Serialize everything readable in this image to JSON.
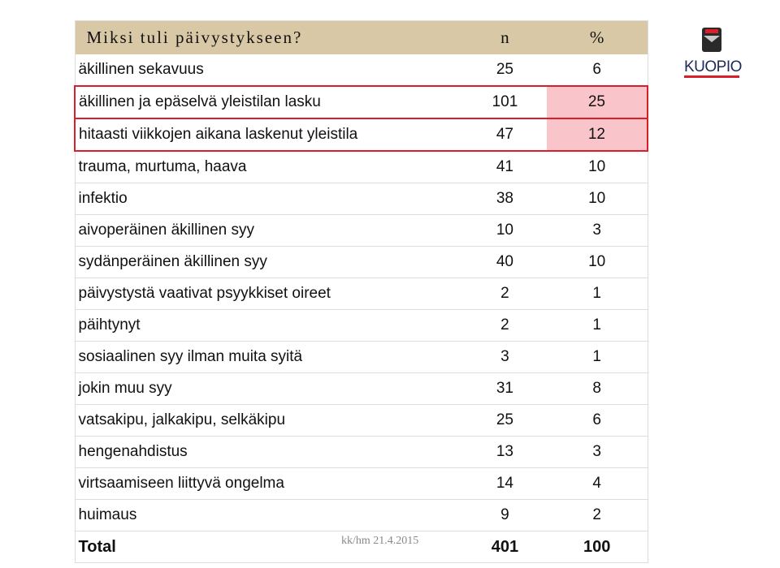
{
  "logo": {
    "text": "KUOPIO"
  },
  "table": {
    "header": [
      "Miksi tuli päivystykseen?",
      "n",
      "%"
    ],
    "rows": [
      [
        "äkillinen sekavuus",
        25,
        6
      ],
      [
        "äkillinen ja epäselvä yleistilan lasku",
        101,
        25
      ],
      [
        "hitaasti viikkojen aikana laskenut yleistila",
        47,
        12
      ],
      [
        "trauma, murtuma, haava",
        41,
        10
      ],
      [
        "infektio",
        38,
        10
      ],
      [
        "aivoperäinen äkillinen syy",
        10,
        3
      ],
      [
        "sydänperäinen äkillinen syy",
        40,
        10
      ],
      [
        "päivystystä vaativat psyykkiset oireet",
        2,
        1
      ],
      [
        "päihtynyt",
        2,
        1
      ],
      [
        "sosiaalinen syy ilman muita syitä",
        3,
        1
      ],
      [
        "jokin muu syy",
        31,
        8
      ],
      [
        "vatsakipu, jalkakipu, selkäkipu",
        25,
        6
      ],
      [
        "hengenahdistus",
        13,
        3
      ],
      [
        "virtsaamiseen liittyvä ongelma",
        14,
        4
      ],
      [
        "huimaus",
        9,
        2
      ]
    ],
    "total": [
      "Total",
      401,
      100
    ]
  },
  "footer": "kk/hm 21.4.2015"
}
